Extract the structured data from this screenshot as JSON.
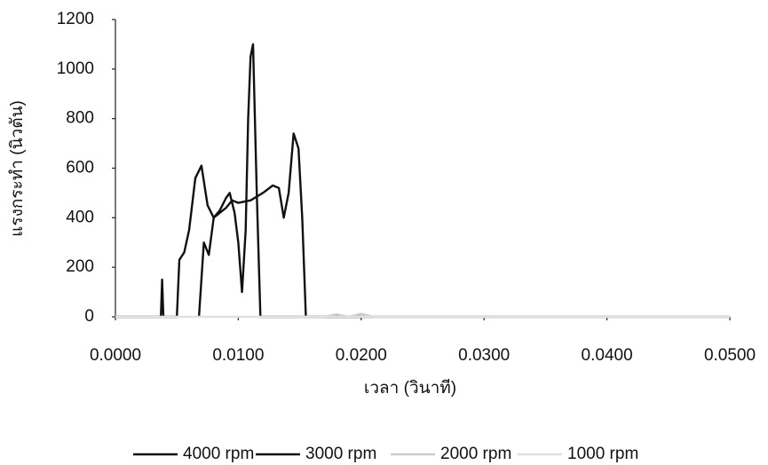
{
  "chart_data": {
    "type": "line",
    "x_label": "เวลา (วินาที)",
    "y_label": "แรงกระทำ (นิวตัน)",
    "xlim": [
      0,
      0.05
    ],
    "xticks": [
      {
        "value": 0,
        "label": "0.0000"
      },
      {
        "value": 0.01,
        "label": "0.0100"
      },
      {
        "value": 0.02,
        "label": "0.0200"
      },
      {
        "value": 0.03,
        "label": "0.0300"
      },
      {
        "value": 0.04,
        "label": "0.0400"
      },
      {
        "value": 0.05,
        "label": "0.0500"
      }
    ],
    "ylim": [
      0,
      1200
    ],
    "yticks": [
      0,
      200,
      400,
      600,
      800,
      1000,
      1200
    ],
    "grid": false,
    "legend": "bottom",
    "series": [
      {
        "name": "4000 rpm",
        "color": "#111111",
        "x": [
          0,
          0.0037,
          0.0038,
          0.0039,
          0.005,
          0.0052,
          0.0056,
          0.006,
          0.0065,
          0.007,
          0.0075,
          0.008,
          0.0085,
          0.009,
          0.0093,
          0.0097,
          0.01,
          0.0103,
          0.0106,
          0.0108,
          0.011,
          0.0112,
          0.0115,
          0.0118,
          0.015,
          0.05
        ],
        "values": [
          0,
          0,
          150,
          0,
          0,
          230,
          260,
          350,
          560,
          610,
          450,
          400,
          430,
          480,
          500,
          420,
          300,
          100,
          350,
          800,
          1050,
          1100,
          500,
          0,
          0,
          0
        ]
      },
      {
        "name": "3000 rpm",
        "color": "#111111",
        "x": [
          0.0068,
          0.0072,
          0.0076,
          0.008,
          0.0085,
          0.009,
          0.0095,
          0.01,
          0.011,
          0.012,
          0.0128,
          0.0133,
          0.0137,
          0.0141,
          0.0145,
          0.0149,
          0.0152,
          0.0155,
          0.016,
          0.02
        ],
        "values": [
          0,
          300,
          250,
          400,
          420,
          440,
          470,
          460,
          470,
          500,
          530,
          520,
          400,
          500,
          740,
          680,
          400,
          0,
          0,
          0
        ]
      },
      {
        "name": "2000 rpm",
        "color": "#cccccc",
        "x": [
          0.015,
          0.017,
          0.018,
          0.019,
          0.02,
          0.021,
          0.05
        ],
        "values": [
          0,
          0,
          10,
          0,
          12,
          0,
          0
        ]
      },
      {
        "name": "1000 rpm",
        "color": "#e0e0e0",
        "x": [
          0,
          0.05
        ],
        "values": [
          0,
          0
        ]
      }
    ]
  }
}
